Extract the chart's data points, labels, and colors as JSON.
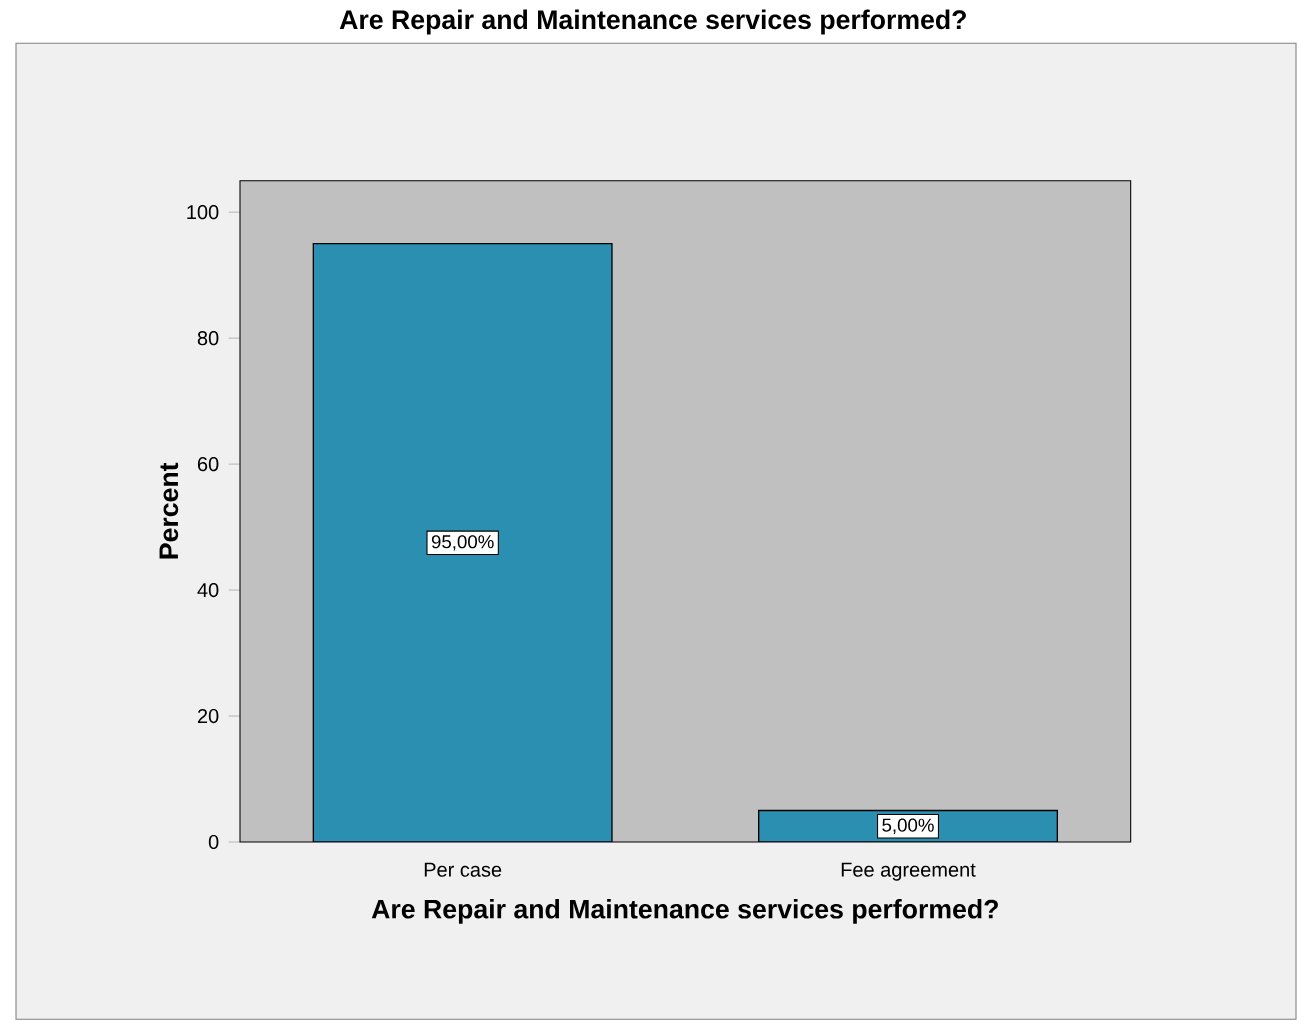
{
  "chart_data": {
    "type": "bar",
    "title": "Are Repair and Maintenance services performed?",
    "xlabel": "Are Repair and Maintenance services performed?",
    "ylabel": "Percent",
    "categories": [
      "Per case",
      "Fee agreement"
    ],
    "values": [
      95,
      5
    ],
    "value_labels": [
      "95,00%",
      "5,00%"
    ],
    "color": "#2a8fb0",
    "ylim": [
      0,
      105
    ],
    "yticks": [
      0,
      20,
      40,
      60,
      80,
      100
    ]
  }
}
